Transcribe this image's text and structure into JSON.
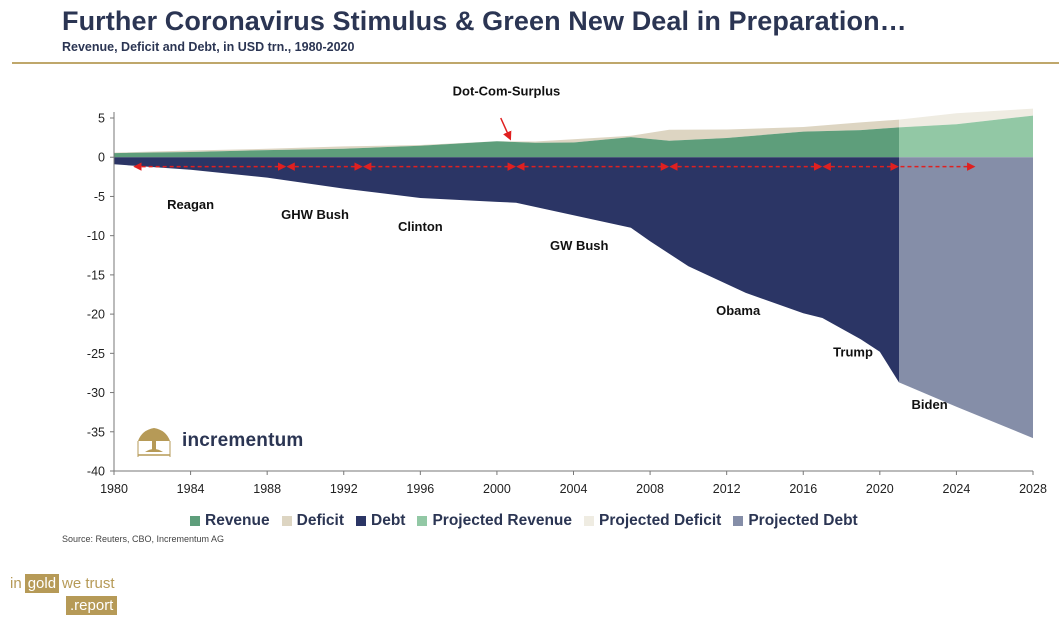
{
  "header": {
    "title": "Further Coronavirus Stimulus & Green New Deal in Preparation…",
    "subtitle": "Revenue, Deficit and Debt, in USD trn., 1980-2020"
  },
  "source": "Source: Reuters, CBO, Incrementum AG",
  "brand": {
    "name": "incrementum",
    "footer_in": "in",
    "footer_gold": "gold",
    "footer_trust": "we trust",
    "footer_report": ".report"
  },
  "colors": {
    "revenue": "#5e9e7b",
    "deficit": "#ddd5c2",
    "debt": "#2b3565",
    "projected_revenue": "#92c8a5",
    "projected_deficit": "#efece2",
    "projected_debt": "#858ea8",
    "arrow": "#e02020",
    "text": "#2b3553",
    "gold": "#b69a57"
  },
  "chart_data": {
    "type": "area",
    "xlim": [
      1980,
      2028
    ],
    "ylim": [
      -40,
      5
    ],
    "x_ticks": [
      "1980",
      "1984",
      "1988",
      "1992",
      "1996",
      "2000",
      "2004",
      "2008",
      "2012",
      "2016",
      "2020",
      "2024",
      "2028"
    ],
    "y_ticks": [
      "5",
      "0",
      "-5",
      "-10",
      "-15",
      "-20",
      "-25",
      "-30",
      "-35",
      "-40"
    ],
    "legend": [
      "Revenue",
      "Deficit",
      "Debt",
      "Projected Revenue",
      "Projected Deficit",
      "Projected Debt"
    ],
    "series": [
      {
        "name": "Revenue",
        "x": [
          1980,
          1984,
          1988,
          1992,
          1996,
          2000,
          2002,
          2004,
          2007,
          2009,
          2012,
          2016,
          2019,
          2021
        ],
        "values": [
          0.52,
          0.67,
          0.91,
          1.09,
          1.45,
          2.03,
          1.85,
          1.88,
          2.57,
          2.1,
          2.45,
          3.27,
          3.46,
          3.8
        ]
      },
      {
        "name": "Deficit",
        "x": [
          1980,
          1984,
          1988,
          1992,
          1996,
          2000,
          2002,
          2004,
          2007,
          2009,
          2012,
          2016,
          2019,
          2021
        ],
        "values": [
          0.07,
          0.19,
          0.16,
          0.29,
          0.11,
          0.0,
          0.16,
          0.41,
          0.16,
          1.41,
          1.09,
          0.58,
          0.98,
          1.0
        ]
      },
      {
        "name": "Debt",
        "x": [
          1980,
          1984,
          1988,
          1992,
          1996,
          2000,
          2001,
          2004,
          2007,
          2008,
          2010,
          2013,
          2016,
          2017,
          2019,
          2020,
          2021
        ],
        "values": [
          -0.9,
          -1.6,
          -2.6,
          -4.0,
          -5.2,
          -5.7,
          -5.8,
          -7.4,
          -9.0,
          -10.7,
          -13.9,
          -17.3,
          -19.9,
          -20.5,
          -23.2,
          -24.8,
          -28.7
        ]
      },
      {
        "name": "Projected Revenue",
        "x": [
          2021,
          2024,
          2028
        ],
        "values": [
          3.8,
          4.2,
          5.3
        ]
      },
      {
        "name": "Projected Deficit",
        "x": [
          2021,
          2024,
          2028
        ],
        "values": [
          1.0,
          1.4,
          0.9
        ]
      },
      {
        "name": "Projected Debt",
        "x": [
          2021,
          2024,
          2028
        ],
        "values": [
          -28.7,
          -31.8,
          -35.8
        ]
      }
    ],
    "annotations": [
      {
        "text": "Dot-Com-Surplus",
        "x": 2000.5,
        "y": 7.9
      },
      {
        "text": "Reagan",
        "x": 1984,
        "y": -6.6
      },
      {
        "text": "GHW Bush",
        "x": 1990.5,
        "y": -7.9
      },
      {
        "text": "Clinton",
        "x": 1996,
        "y": -9.4
      },
      {
        "text": "GW Bush",
        "x": 2004.3,
        "y": -11.8
      },
      {
        "text": "Obama",
        "x": 2012.6,
        "y": -20.1
      },
      {
        "text": "Trump",
        "x": 2018.6,
        "y": -25.4
      },
      {
        "text": "Biden",
        "x": 2022.6,
        "y": -32.1
      }
    ],
    "presidential_terms": [
      1981,
      1989,
      1993,
      2001,
      2009,
      2017,
      2021,
      2025
    ],
    "arrow_y": -1.2,
    "surplus_arrow": {
      "from": [
        2000.2,
        5.0
      ],
      "to": [
        2000.7,
        2.3
      ]
    }
  }
}
